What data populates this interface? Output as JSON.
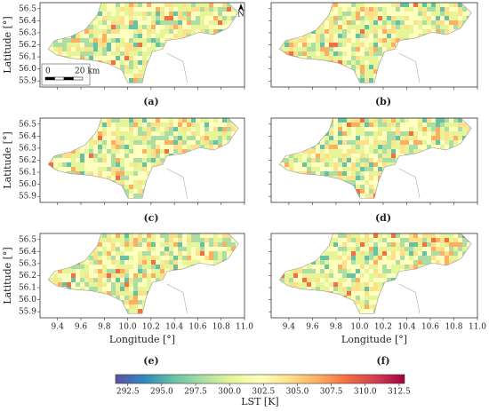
{
  "panels": [
    {
      "label": "(a)"
    },
    {
      "label": "(b)"
    },
    {
      "label": "(c)"
    },
    {
      "label": "(d)"
    },
    {
      "label": "(e)"
    },
    {
      "label": "(f)"
    }
  ],
  "xaxis": {
    "label": "Longitude [°]",
    "lim": [
      9.25,
      11.0
    ],
    "ticks": [
      9.4,
      9.6,
      9.8,
      {
        "value": 10.0,
        "label": "10.0"
      },
      10.2,
      10.4,
      10.6,
      10.8,
      {
        "value": 11.0,
        "label": "11.0"
      }
    ]
  },
  "yaxis": {
    "label": "Latitude [°]",
    "lim": [
      55.85,
      56.55
    ],
    "ticks": [
      55.9,
      {
        "value": 56.0,
        "label": "56.0"
      },
      56.1,
      56.2,
      56.3,
      56.4,
      56.5
    ]
  },
  "colorbar": {
    "label": "LST [K]",
    "lim": [
      291.6,
      312.9
    ],
    "ticks": [
      292.5,
      {
        "value": 295.0,
        "label": "295.0"
      },
      297.5,
      {
        "value": 300.0,
        "label": "300.0"
      },
      302.5,
      {
        "value": 305.0,
        "label": "305.0"
      },
      307.5,
      {
        "value": 310.0,
        "label": "310.0"
      },
      312.5
    ],
    "colormap": [
      "#5e4fa2",
      "#3288bd",
      "#66c2a5",
      "#abdda4",
      "#e6f598",
      "#ffffbf",
      "#fee08b",
      "#fdae61",
      "#f46d43",
      "#d53e4f",
      "#9e0142"
    ]
  },
  "scale_bar": {
    "start": "0",
    "end": "20 km"
  },
  "north": "N"
}
